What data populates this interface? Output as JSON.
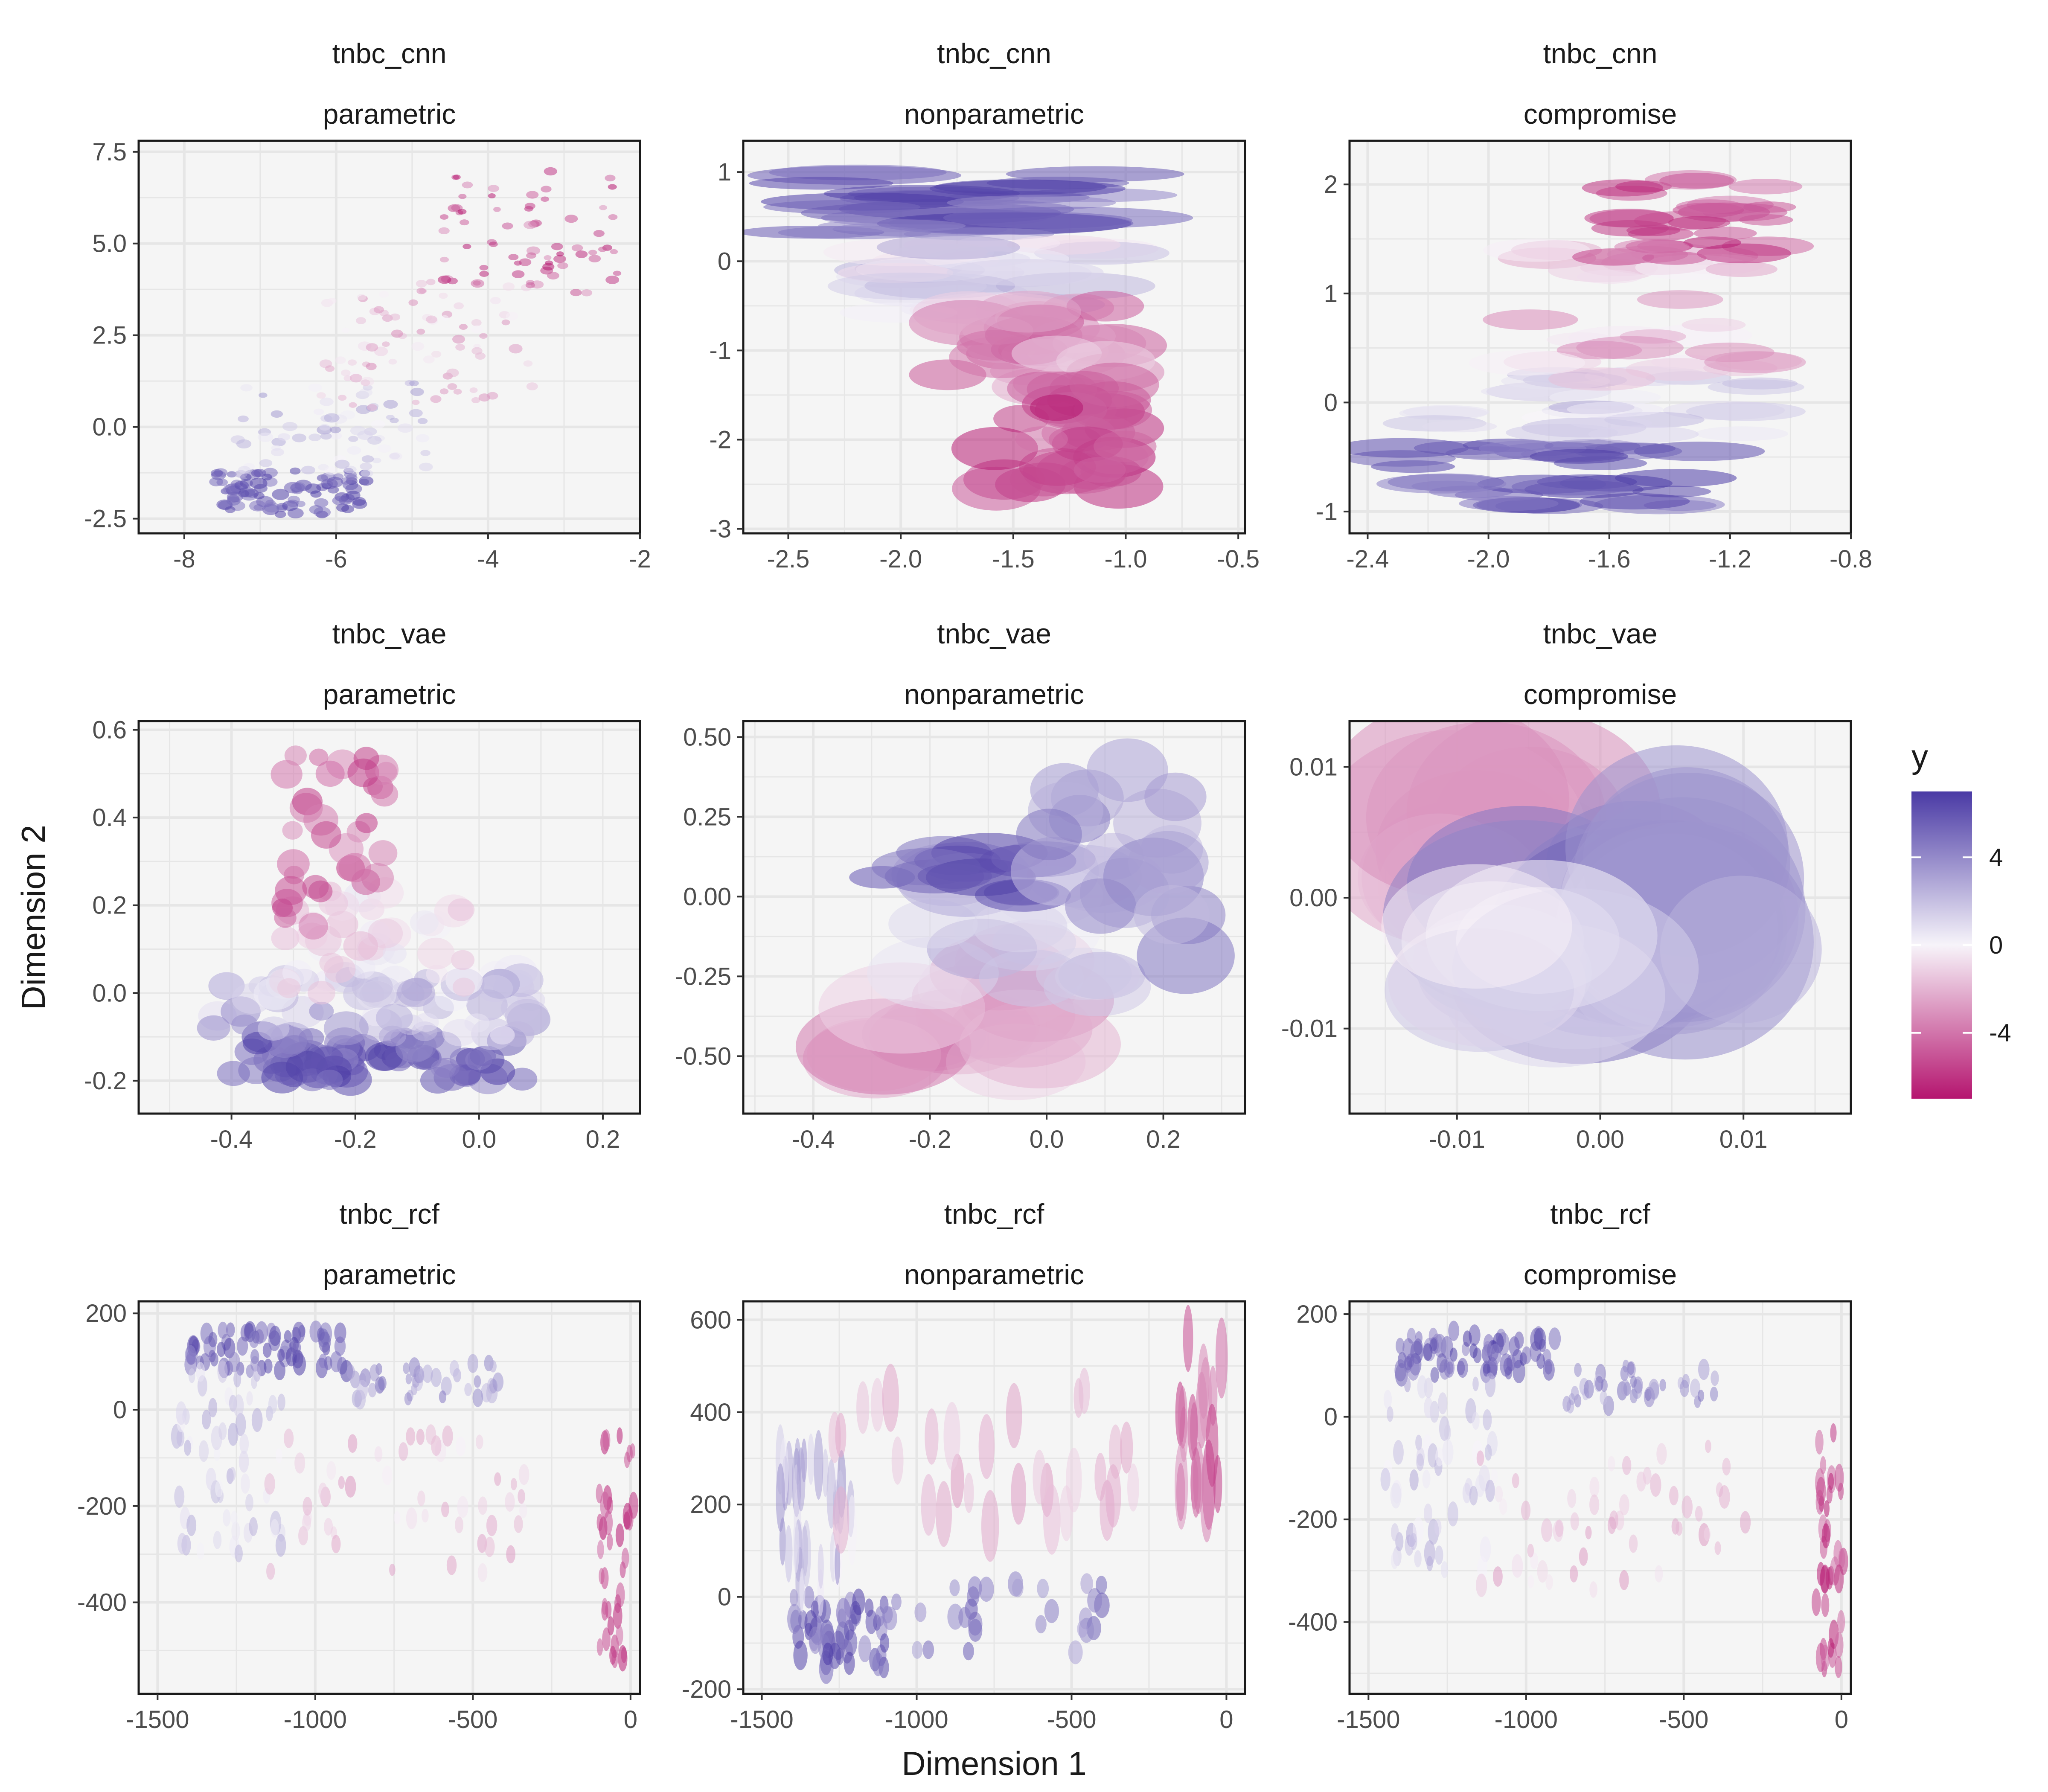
{
  "chart_data": [
    {
      "type": "scatter",
      "shape": "ellipse",
      "strip": [
        "tnbc_cnn",
        "parametric"
      ],
      "xlim": [
        -8.6,
        -2
      ],
      "ylim": [
        -2.9,
        7.8
      ],
      "xticks": [
        "-8",
        "-6",
        "-4",
        "-2"
      ],
      "yticks": [
        "-2.5",
        "0.0",
        "2.5",
        "5.0",
        "7.5"
      ],
      "clusters": [
        {
          "x": [
            -7.6,
            -5.6
          ],
          "y": [
            -2.4,
            -1.2
          ],
          "color": [
            4.5,
            7
          ],
          "n": 90,
          "w": 0.09,
          "h": 0.12
        },
        {
          "x": [
            -7.3,
            -4.6
          ],
          "y": [
            -1.3,
            1.2
          ],
          "color": [
            0,
            3.5
          ],
          "n": 70,
          "w": 0.08,
          "h": 0.1
        },
        {
          "x": [
            -6.2,
            -3.4
          ],
          "y": [
            0.5,
            4
          ],
          "color": [
            -3.5,
            0
          ],
          "n": 80,
          "w": 0.07,
          "h": 0.1
        },
        {
          "x": [
            -4.6,
            -2.3
          ],
          "y": [
            3.6,
            7
          ],
          "color": [
            -7,
            -3
          ],
          "n": 70,
          "w": 0.07,
          "h": 0.09
        }
      ]
    },
    {
      "type": "scatter",
      "shape": "ellipse",
      "strip": [
        "tnbc_cnn",
        "nonparametric"
      ],
      "xlim": [
        -2.7,
        -0.47
      ],
      "ylim": [
        -3.05,
        1.35
      ],
      "xticks": [
        "-2.5",
        "-2.0",
        "-1.5",
        "-1.0",
        "-0.5"
      ],
      "yticks": [
        "-3",
        "-2",
        "-1",
        "0",
        "1"
      ],
      "clusters": [
        {
          "x": [
            -2.4,
            -1.1
          ],
          "y": [
            0.3,
            1.0
          ],
          "color": [
            4,
            7
          ],
          "n": 28,
          "w": 0.45,
          "h": 0.1
        },
        {
          "x": [
            -2.1,
            -1.0
          ],
          "y": [
            -0.6,
            0.3
          ],
          "color": [
            -1,
            3
          ],
          "n": 28,
          "w": 0.3,
          "h": 0.13
        },
        {
          "x": [
            -1.8,
            -1.0
          ],
          "y": [
            -1.5,
            -0.5
          ],
          "color": [
            -5,
            -1
          ],
          "n": 30,
          "w": 0.2,
          "h": 0.2
        },
        {
          "x": [
            -1.6,
            -1.0
          ],
          "y": [
            -2.6,
            -1.2
          ],
          "color": [
            -7,
            -4
          ],
          "n": 34,
          "w": 0.16,
          "h": 0.2
        }
      ]
    },
    {
      "type": "scatter",
      "shape": "ellipse",
      "strip": [
        "tnbc_cnn",
        "compromise"
      ],
      "xlim": [
        -2.46,
        -0.8
      ],
      "ylim": [
        -1.2,
        2.4
      ],
      "xticks": [
        "-2.4",
        "-2.0",
        "-1.6",
        "-1.2",
        "-0.8"
      ],
      "yticks": [
        "-1",
        "0",
        "1",
        "2"
      ],
      "clusters": [
        {
          "x": [
            -2.3,
            -1.3
          ],
          "y": [
            -0.95,
            -0.35
          ],
          "color": [
            4,
            7
          ],
          "n": 34,
          "w": 0.17,
          "h": 0.07
        },
        {
          "x": [
            -2.2,
            -1.1
          ],
          "y": [
            -0.3,
            0.3
          ],
          "color": [
            0,
            3
          ],
          "n": 26,
          "w": 0.16,
          "h": 0.07
        },
        {
          "x": [
            -1.9,
            -1.1
          ],
          "y": [
            0.2,
            1.4
          ],
          "color": [
            -3.5,
            0
          ],
          "n": 30,
          "w": 0.15,
          "h": 0.09
        },
        {
          "x": [
            -1.6,
            -1.05
          ],
          "y": [
            1.3,
            2.05
          ],
          "color": [
            -7,
            -3.5
          ],
          "n": 30,
          "w": 0.12,
          "h": 0.07
        }
      ]
    },
    {
      "type": "scatter",
      "shape": "ellipse",
      "strip": [
        "tnbc_vae",
        "parametric"
      ],
      "xlim": [
        -0.55,
        0.26
      ],
      "ylim": [
        -0.275,
        0.62
      ],
      "xticks": [
        "-0.4",
        "-0.2",
        "0.0",
        "0.2"
      ],
      "yticks": [
        "-0.2",
        "0.0",
        "0.2",
        "0.4",
        "0.6"
      ],
      "clusters": [
        {
          "x": [
            -0.4,
            0.07
          ],
          "y": [
            -0.2,
            -0.1
          ],
          "color": [
            4,
            7
          ],
          "n": 70,
          "w": 0.028,
          "h": 0.03
        },
        {
          "x": [
            -0.45,
            0.1
          ],
          "y": [
            -0.1,
            0.05
          ],
          "color": [
            0,
            4
          ],
          "n": 60,
          "w": 0.028,
          "h": 0.03
        },
        {
          "x": [
            -0.33,
            -0.02
          ],
          "y": [
            0.0,
            0.25
          ],
          "color": [
            -2,
            1
          ],
          "n": 40,
          "w": 0.025,
          "h": 0.03
        },
        {
          "x": [
            -0.32,
            -0.15
          ],
          "y": [
            0.1,
            0.55
          ],
          "color": [
            -6,
            -3
          ],
          "n": 34,
          "w": 0.022,
          "h": 0.028
        }
      ]
    },
    {
      "type": "scatter",
      "shape": "ellipse",
      "strip": [
        "tnbc_vae",
        "nonparametric"
      ],
      "xlim": [
        -0.52,
        0.34
      ],
      "ylim": [
        -0.68,
        0.55
      ],
      "xticks": [
        "-0.4",
        "-0.2",
        "0.0",
        "0.2"
      ],
      "yticks": [
        "-0.50",
        "-0.25",
        "0.00",
        "0.25",
        "0.50"
      ],
      "clusters": [
        {
          "x": [
            -0.3,
            0.0
          ],
          "y": [
            -0.55,
            -0.2
          ],
          "color": [
            -4,
            -1
          ],
          "n": 18,
          "w": 0.12,
          "h": 0.12
        },
        {
          "x": [
            -0.2,
            0.1
          ],
          "y": [
            -0.3,
            0.1
          ],
          "color": [
            0,
            3
          ],
          "n": 16,
          "w": 0.1,
          "h": 0.1
        },
        {
          "x": [
            -0.3,
            0.0
          ],
          "y": [
            0.0,
            0.15
          ],
          "color": [
            4,
            7
          ],
          "n": 14,
          "w": 0.08,
          "h": 0.05
        },
        {
          "x": [
            0.0,
            0.25
          ],
          "y": [
            -0.2,
            0.4
          ],
          "color": [
            2,
            5
          ],
          "n": 18,
          "w": 0.07,
          "h": 0.1
        }
      ]
    },
    {
      "type": "scatter",
      "shape": "ellipse",
      "strip": [
        "tnbc_vae",
        "compromise"
      ],
      "xlim": [
        -0.0175,
        0.0175
      ],
      "ylim": [
        -0.0165,
        0.0135
      ],
      "xticks": [
        "-0.01",
        "0.00",
        "0.01"
      ],
      "yticks": [
        "-0.01",
        "0.00",
        "0.01"
      ],
      "clusters": [
        {
          "x": [
            -0.012,
            -0.004
          ],
          "y": [
            0.0,
            0.008
          ],
          "color": [
            -4,
            -1
          ],
          "n": 10,
          "w": 0.008,
          "h": 0.007
        },
        {
          "x": [
            -0.006,
            0.006
          ],
          "y": [
            -0.006,
            0.004
          ],
          "color": [
            4,
            7
          ],
          "n": 10,
          "w": 0.008,
          "h": 0.006
        },
        {
          "x": [
            0.004,
            0.01
          ],
          "y": [
            -0.004,
            0.004
          ],
          "color": [
            2,
            4
          ],
          "n": 10,
          "w": 0.007,
          "h": 0.007
        },
        {
          "x": [
            -0.01,
            0.0
          ],
          "y": [
            -0.008,
            -0.002
          ],
          "color": [
            -1,
            2
          ],
          "n": 10,
          "w": 0.007,
          "h": 0.005
        }
      ]
    },
    {
      "type": "scatter",
      "shape": "ellipse",
      "strip": [
        "tnbc_rcf",
        "parametric"
      ],
      "xlim": [
        -1560,
        30
      ],
      "ylim": [
        -590,
        225
      ],
      "xticks": [
        "-1500",
        "-1000",
        "-500",
        "0"
      ],
      "yticks": [
        "-400",
        "-200",
        "0",
        "200"
      ],
      "clusters": [
        {
          "x": [
            -1400,
            -900
          ],
          "y": [
            80,
            170
          ],
          "color": [
            4,
            7
          ],
          "n": 70,
          "w": 16,
          "h": 18
        },
        {
          "x": [
            -900,
            -400
          ],
          "y": [
            20,
            100
          ],
          "color": [
            2,
            5
          ],
          "n": 40,
          "w": 14,
          "h": 16
        },
        {
          "x": [
            -1450,
            -1100
          ],
          "y": [
            -300,
            80
          ],
          "color": [
            0,
            3
          ],
          "n": 60,
          "w": 14,
          "h": 20
        },
        {
          "x": [
            -1150,
            -300
          ],
          "y": [
            -350,
            -50
          ],
          "color": [
            -3,
            0
          ],
          "n": 50,
          "w": 14,
          "h": 18
        },
        {
          "x": [
            -100,
            10
          ],
          "y": [
            -540,
            -40
          ],
          "color": [
            -7,
            -4
          ],
          "n": 40,
          "w": 12,
          "h": 22
        }
      ]
    },
    {
      "type": "scatter",
      "shape": "ellipse",
      "strip": [
        "tnbc_rcf",
        "nonparametric"
      ],
      "xlim": [
        -1560,
        60
      ],
      "ylim": [
        -210,
        640
      ],
      "xticks": [
        "-1500",
        "-1000",
        "-500",
        "0"
      ],
      "yticks": [
        "-200",
        "0",
        "200",
        "400",
        "600"
      ],
      "clusters": [
        {
          "x": [
            -1400,
            -1100
          ],
          "y": [
            -160,
            0
          ],
          "color": [
            4,
            7
          ],
          "n": 50,
          "w": 18,
          "h": 25
        },
        {
          "x": [
            -1100,
            -400
          ],
          "y": [
            -120,
            30
          ],
          "color": [
            3,
            6
          ],
          "n": 30,
          "w": 20,
          "h": 22
        },
        {
          "x": [
            -1450,
            -1200
          ],
          "y": [
            0,
            300
          ],
          "color": [
            0,
            4
          ],
          "n": 36,
          "w": 12,
          "h": 60
        },
        {
          "x": [
            -1300,
            -300
          ],
          "y": [
            150,
            450
          ],
          "color": [
            -3,
            -1
          ],
          "n": 30,
          "w": 22,
          "h": 60
        },
        {
          "x": [
            -150,
            -10
          ],
          "y": [
            200,
            600
          ],
          "color": [
            -6,
            -3
          ],
          "n": 20,
          "w": 18,
          "h": 80
        }
      ]
    },
    {
      "type": "scatter",
      "shape": "ellipse",
      "strip": [
        "tnbc_rcf",
        "compromise"
      ],
      "xlim": [
        -1560,
        30
      ],
      "ylim": [
        -540,
        225
      ],
      "xticks": [
        "-1500",
        "-1000",
        "-500",
        "0"
      ],
      "yticks": [
        "-400",
        "-200",
        "0",
        "200"
      ],
      "clusters": [
        {
          "x": [
            -1400,
            -900
          ],
          "y": [
            80,
            170
          ],
          "color": [
            4,
            7
          ],
          "n": 70,
          "w": 16,
          "h": 18
        },
        {
          "x": [
            -900,
            -400
          ],
          "y": [
            20,
            100
          ],
          "color": [
            2,
            5
          ],
          "n": 40,
          "w": 14,
          "h": 16
        },
        {
          "x": [
            -1450,
            -1100
          ],
          "y": [
            -300,
            80
          ],
          "color": [
            0,
            3
          ],
          "n": 60,
          "w": 14,
          "h": 20
        },
        {
          "x": [
            -1150,
            -300
          ],
          "y": [
            -350,
            -50
          ],
          "color": [
            -3,
            0
          ],
          "n": 50,
          "w": 14,
          "h": 18
        },
        {
          "x": [
            -80,
            10
          ],
          "y": [
            -500,
            -20
          ],
          "color": [
            -7,
            -4
          ],
          "n": 40,
          "w": 12,
          "h": 22
        }
      ]
    }
  ],
  "axes": {
    "xlabel": "Dimension 1",
    "ylabel": "Dimension 2"
  },
  "legend": {
    "title": "y",
    "ticks": [
      "4",
      "0",
      "-4"
    ],
    "range": [
      -7,
      7
    ],
    "colors": {
      "low": "#b5156f",
      "mid": "#f7f4fa",
      "high": "#4a3aa5"
    }
  },
  "theme": {
    "panel_bg": "#f5f5f5",
    "grid": "#e6e6e6",
    "border": "#1a1a1a"
  }
}
